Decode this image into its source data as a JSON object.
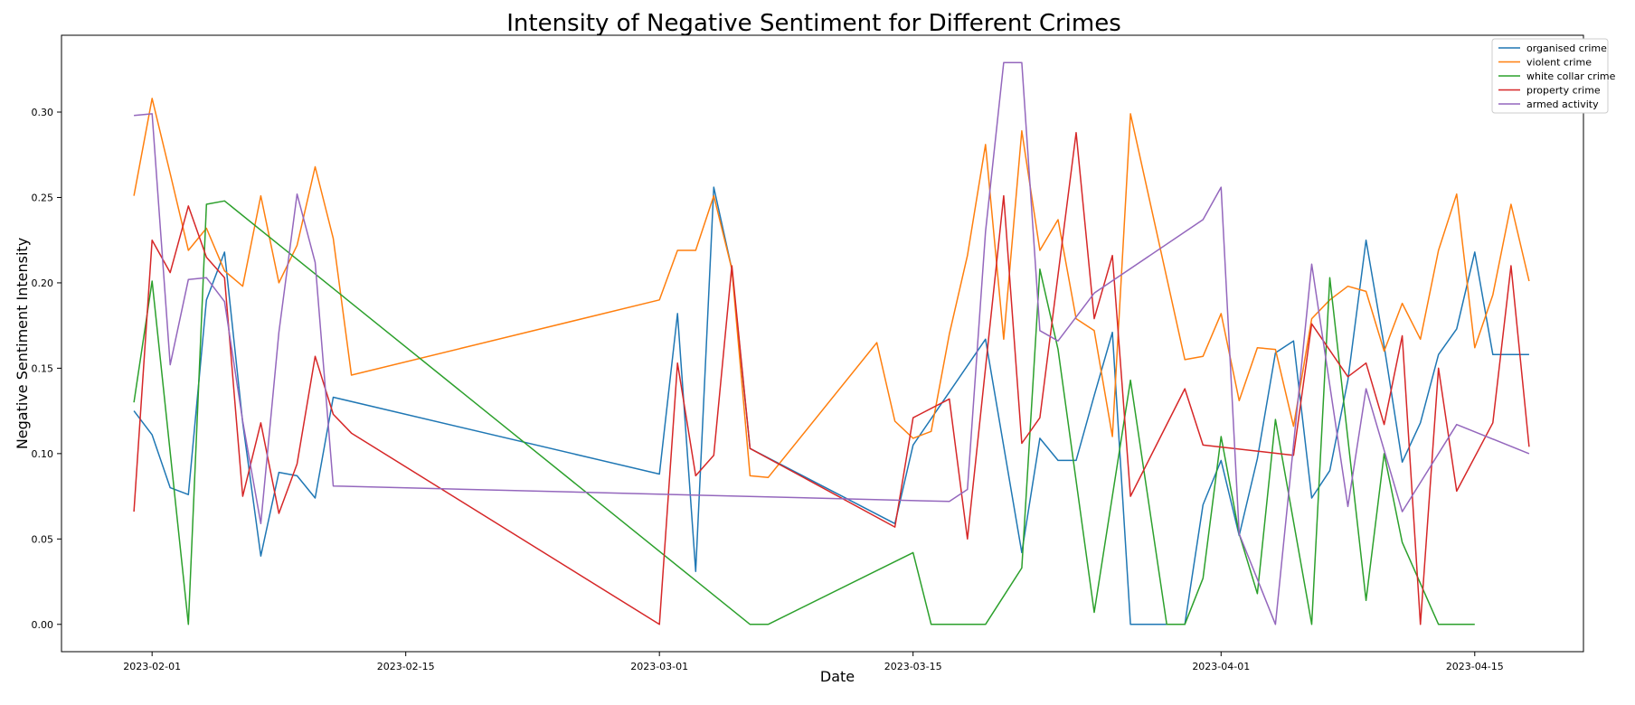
{
  "chart_data": {
    "type": "line",
    "title": "Intensity of Negative Sentiment for Different Crimes",
    "xlabel": "Date",
    "ylabel": "Negative Sentiment Intensity",
    "xlim": [
      "2023-01-27",
      "2023-04-21"
    ],
    "ylim": [
      -0.016,
      0.345
    ],
    "x_ticks": [
      "2023-02-01",
      "2023-02-15",
      "2023-03-01",
      "2023-03-15",
      "2023-04-01",
      "2023-04-15"
    ],
    "y_ticks": [
      0.0,
      0.05,
      0.1,
      0.15,
      0.2,
      0.25,
      0.3
    ],
    "y_tick_labels": [
      "0.00",
      "0.05",
      "0.10",
      "0.15",
      "0.20",
      "0.25",
      "0.30"
    ],
    "grid": false,
    "legend_position": "top-right",
    "series": [
      {
        "name": "organised crime",
        "color": "#1f77b4",
        "x": [
          "2023-01-31",
          "2023-02-01",
          "2023-02-02",
          "2023-02-03",
          "2023-02-04",
          "2023-02-05",
          "2023-02-06",
          "2023-02-07",
          "2023-02-08",
          "2023-02-09",
          "2023-02-10",
          "2023-02-11",
          "2023-03-01",
          "2023-03-02",
          "2023-03-03",
          "2023-03-04",
          "2023-03-05",
          "2023-03-06",
          "2023-03-14",
          "2023-03-15",
          "2023-03-19",
          "2023-03-21",
          "2023-03-22",
          "2023-03-23",
          "2023-03-24",
          "2023-03-25",
          "2023-03-26",
          "2023-03-27",
          "2023-03-28",
          "2023-03-29",
          "2023-03-30",
          "2023-03-31",
          "2023-04-01",
          "2023-04-02",
          "2023-04-03",
          "2023-04-04",
          "2023-04-05",
          "2023-04-06",
          "2023-04-07",
          "2023-04-08",
          "2023-04-09",
          "2023-04-10",
          "2023-04-11",
          "2023-04-12",
          "2023-04-13",
          "2023-04-14",
          "2023-04-15",
          "2023-04-16",
          "2023-04-17",
          "2023-04-18"
        ],
        "y": [
          0.125,
          0.111,
          0.08,
          0.076,
          0.19,
          0.218,
          0.118,
          0.04,
          0.089,
          0.087,
          0.074,
          0.133,
          0.088,
          0.182,
          0.031,
          0.256,
          0.208,
          0.103,
          0.059,
          0.105,
          0.167,
          0.042,
          0.109,
          0.096,
          0.096,
          0.134,
          0.171,
          0.0,
          0.0,
          0.0,
          0.0,
          0.07,
          0.096,
          0.052,
          0.097,
          0.159,
          0.166,
          0.074,
          0.09,
          0.143,
          0.225,
          0.163,
          0.095,
          0.118,
          0.158,
          0.173,
          0.218,
          0.158,
          0.158,
          0.158
        ]
      },
      {
        "name": "violent crime",
        "color": "#ff7f0e",
        "x": [
          "2023-01-31",
          "2023-02-01",
          "2023-02-02",
          "2023-02-03",
          "2023-02-04",
          "2023-02-05",
          "2023-02-06",
          "2023-02-07",
          "2023-02-08",
          "2023-02-09",
          "2023-02-10",
          "2023-02-11",
          "2023-02-12",
          "2023-03-01",
          "2023-03-02",
          "2023-03-03",
          "2023-03-04",
          "2023-03-05",
          "2023-03-06",
          "2023-03-07",
          "2023-03-13",
          "2023-03-14",
          "2023-03-15",
          "2023-03-16",
          "2023-03-17",
          "2023-03-18",
          "2023-03-19",
          "2023-03-20",
          "2023-03-21",
          "2023-03-22",
          "2023-03-23",
          "2023-03-24",
          "2023-03-25",
          "2023-03-26",
          "2023-03-27",
          "2023-03-30",
          "2023-03-31",
          "2023-04-01",
          "2023-04-02",
          "2023-04-03",
          "2023-04-04",
          "2023-04-05",
          "2023-04-06",
          "2023-04-07",
          "2023-04-08",
          "2023-04-09",
          "2023-04-10",
          "2023-04-11",
          "2023-04-12",
          "2023-04-13",
          "2023-04-14",
          "2023-04-15",
          "2023-04-16",
          "2023-04-17",
          "2023-04-18"
        ],
        "y": [
          0.251,
          0.308,
          0.264,
          0.219,
          0.232,
          0.207,
          0.198,
          0.251,
          0.2,
          0.222,
          0.268,
          0.226,
          0.146,
          0.19,
          0.219,
          0.219,
          0.251,
          0.208,
          0.087,
          0.086,
          0.165,
          0.119,
          0.109,
          0.113,
          0.17,
          0.216,
          0.281,
          0.167,
          0.289,
          0.219,
          0.237,
          0.179,
          0.172,
          0.11,
          0.299,
          0.155,
          0.157,
          0.182,
          0.131,
          0.162,
          0.161,
          0.116,
          0.179,
          0.19,
          0.198,
          0.195,
          0.16,
          0.188,
          0.167,
          0.219,
          0.252,
          0.162,
          0.193,
          0.246,
          0.201
        ]
      },
      {
        "name": "white collar crime",
        "color": "#2ca02c",
        "x": [
          "2023-01-31",
          "2023-02-01",
          "2023-02-03",
          "2023-02-04",
          "2023-02-05",
          "2023-03-06",
          "2023-03-07",
          "2023-03-15",
          "2023-03-16",
          "2023-03-19",
          "2023-03-21",
          "2023-03-22",
          "2023-03-23",
          "2023-03-25",
          "2023-03-27",
          "2023-03-29",
          "2023-03-30",
          "2023-03-31",
          "2023-04-01",
          "2023-04-02",
          "2023-04-03",
          "2023-04-04",
          "2023-04-06",
          "2023-04-07",
          "2023-04-09",
          "2023-04-10",
          "2023-04-11",
          "2023-04-13",
          "2023-04-14",
          "2023-04-15"
        ],
        "y": [
          0.13,
          0.201,
          0.0,
          0.246,
          0.248,
          0.0,
          0.0,
          0.042,
          0.0,
          0.0,
          0.033,
          0.208,
          0.161,
          0.007,
          0.143,
          0.0,
          0.0,
          0.027,
          0.11,
          0.053,
          0.018,
          0.12,
          0.0,
          0.203,
          0.014,
          0.1,
          0.048,
          0.0,
          0.0,
          0.0
        ]
      },
      {
        "name": "property crime",
        "color": "#d62728",
        "x": [
          "2023-01-31",
          "2023-02-01",
          "2023-02-02",
          "2023-02-03",
          "2023-02-04",
          "2023-02-05",
          "2023-02-06",
          "2023-02-07",
          "2023-02-08",
          "2023-02-09",
          "2023-02-10",
          "2023-02-11",
          "2023-02-12",
          "2023-03-01",
          "2023-03-02",
          "2023-03-03",
          "2023-03-04",
          "2023-03-05",
          "2023-03-06",
          "2023-03-14",
          "2023-03-15",
          "2023-03-17",
          "2023-03-18",
          "2023-03-20",
          "2023-03-21",
          "2023-03-22",
          "2023-03-24",
          "2023-03-25",
          "2023-03-26",
          "2023-03-27",
          "2023-03-30",
          "2023-03-31",
          "2023-04-05",
          "2023-04-06",
          "2023-04-08",
          "2023-04-09",
          "2023-04-10",
          "2023-04-11",
          "2023-04-12",
          "2023-04-13",
          "2023-04-14",
          "2023-04-16",
          "2023-04-17",
          "2023-04-18"
        ],
        "y": [
          0.066,
          0.225,
          0.206,
          0.245,
          0.215,
          0.203,
          0.075,
          0.118,
          0.065,
          0.094,
          0.157,
          0.123,
          0.112,
          0.0,
          0.153,
          0.087,
          0.099,
          0.21,
          0.103,
          0.057,
          0.121,
          0.132,
          0.05,
          0.251,
          0.106,
          0.121,
          0.288,
          0.179,
          0.216,
          0.075,
          0.138,
          0.105,
          0.099,
          0.176,
          0.145,
          0.153,
          0.117,
          0.169,
          0.0,
          0.15,
          0.078,
          0.118,
          0.21,
          0.104
        ]
      },
      {
        "name": "armed activity",
        "color": "#9467bd",
        "x": [
          "2023-01-31",
          "2023-02-01",
          "2023-02-02",
          "2023-02-03",
          "2023-02-04",
          "2023-02-05",
          "2023-02-06",
          "2023-02-07",
          "2023-02-08",
          "2023-02-09",
          "2023-02-10",
          "2023-02-11",
          "2023-03-17",
          "2023-03-18",
          "2023-03-19",
          "2023-03-20",
          "2023-03-21",
          "2023-03-22",
          "2023-03-23",
          "2023-03-25",
          "2023-03-31",
          "2023-04-01",
          "2023-04-02",
          "2023-04-04",
          "2023-04-06",
          "2023-04-08",
          "2023-04-09",
          "2023-04-11",
          "2023-04-14",
          "2023-04-18"
        ],
        "y": [
          0.298,
          0.299,
          0.152,
          0.202,
          0.203,
          0.189,
          0.119,
          0.059,
          0.171,
          0.252,
          0.212,
          0.081,
          0.072,
          0.079,
          0.23,
          0.329,
          0.329,
          0.172,
          0.166,
          0.194,
          0.237,
          0.256,
          0.053,
          0.0,
          0.211,
          0.069,
          0.138,
          0.066,
          0.117,
          0.1
        ]
      }
    ]
  }
}
